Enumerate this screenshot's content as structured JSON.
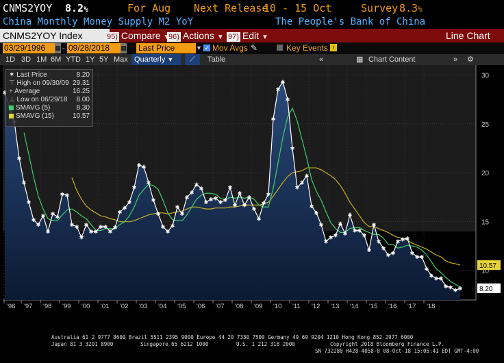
{
  "header": {
    "ticker": "CNMS2YOY",
    "value": "8.2",
    "value_suffix": "%",
    "period_label": "For Aug",
    "next_release_label": "Next Release",
    "next_release": "10 - 15 Oct",
    "survey_label": "Survey",
    "survey_value": "8.3",
    "survey_suffix": "%",
    "description": "China Monthly Money Supply M2 YoY",
    "source": "The People's Bank of China"
  },
  "toolbar": {
    "index_label": "CNMS2YOY Index",
    "compare_num": "95)",
    "compare_label": "Compare",
    "actions_num": "96)",
    "actions_label": "Actions",
    "edit_num": "97)",
    "edit_label": "Edit",
    "chart_type": "Line Chart"
  },
  "controls": {
    "start_date": "03/29/1996",
    "end_date": "09/28/2018",
    "field": "Last Price",
    "mov_avgs_label": "Mov Avgs",
    "key_events_label": "Key Events"
  },
  "ranges": {
    "items": [
      "1D",
      "3D",
      "1M",
      "6M",
      "YTD",
      "1Y",
      "5Y",
      "Max"
    ],
    "frequency": "Quarterly",
    "table_label": "Table",
    "chart_content_label": "Chart Content"
  },
  "legend": {
    "last_price_label": "Last Price",
    "last_price_value": "8.20",
    "high_label": "High on 09/30/09",
    "high_value": "29.31",
    "average_label": "Average",
    "average_value": "16.25",
    "low_label": "Low on 06/29/18",
    "low_value": "8.00",
    "sma5_label": "SMAVG (5)",
    "sma5_value": "8.30",
    "sma15_label": "SMAVG (15)",
    "sma15_value": "10.57"
  },
  "chart_data": {
    "type": "line",
    "x_start": "1996-03-29",
    "x_frequency": "quarterly",
    "ylim": [
      7,
      31
    ],
    "yticks": [
      10,
      15,
      20,
      25,
      30
    ],
    "xticks": [
      "'96",
      "'97",
      "'98",
      "'99",
      "'00",
      "'01",
      "'02",
      "'03",
      "'04",
      "'05",
      "'06",
      "'07",
      "'08",
      "'09",
      "'10",
      "'11",
      "'12",
      "'13",
      "'14",
      "'15",
      "'16",
      "'17",
      "'18"
    ],
    "grid": true,
    "legend_position": "top-left",
    "last_value_tags": [
      "10.57",
      "8.20"
    ],
    "series": [
      {
        "name": "Last Price",
        "color": "#ffffff",
        "values": [
          28.2,
          26.7,
          25.2,
          21.5,
          19.0,
          17.0,
          15.2,
          14.7,
          15.6,
          14.0,
          15.8,
          15.5,
          17.8,
          17.7,
          14.7,
          14.5,
          13.4,
          14.7,
          14.0,
          14.0,
          14.5,
          14.5,
          14.0,
          14.4,
          16.0,
          16.4,
          17.0,
          18.5,
          20.8,
          20.6,
          19.0,
          17.2,
          15.8,
          14.5,
          14.0,
          14.6,
          16.5,
          15.8,
          17.5,
          18.0,
          18.8,
          18.4,
          17.0,
          17.3,
          17.4,
          17.0,
          17.2,
          18.5,
          16.7,
          17.9,
          16.7,
          17.5,
          16.3,
          15.3,
          16.9,
          17.8,
          25.5,
          28.5,
          29.3,
          27.5,
          22.5,
          18.5,
          19.0,
          19.7,
          16.6,
          15.9,
          14.7,
          13.0,
          13.4,
          13.6,
          14.8,
          13.8,
          15.7,
          14.1,
          14.1,
          13.6,
          12.1,
          14.7,
          13.0,
          12.3,
          11.6,
          11.8,
          13.0,
          13.2,
          13.3,
          11.8,
          11.4,
          11.4,
          10.2,
          9.5,
          9.2,
          9.2,
          8.4,
          8.3,
          8.0,
          8.2
        ]
      },
      {
        "name": "SMAVG (5)",
        "color": "#3ecf6a",
        "values": [
          null,
          null,
          null,
          null,
          24.1,
          21.9,
          19.6,
          17.6,
          16.3,
          15.3,
          15.1,
          15.1,
          15.7,
          16.2,
          16.3,
          16.0,
          15.6,
          15.3,
          14.7,
          14.1,
          14.1,
          14.3,
          14.3,
          14.3,
          14.7,
          15.0,
          15.6,
          16.5,
          17.7,
          18.3,
          18.8,
          18.7,
          18.3,
          17.2,
          15.9,
          15.2,
          15.1,
          15.1,
          15.7,
          16.5,
          17.3,
          17.7,
          17.9,
          17.9,
          17.8,
          17.4,
          17.2,
          17.5,
          17.4,
          17.5,
          17.4,
          17.5,
          17.3,
          16.7,
          16.5,
          16.5,
          18.4,
          21.0,
          23.6,
          25.7,
          26.6,
          25.3,
          23.4,
          21.5,
          19.3,
          18.1,
          17.2,
          16.0,
          14.9,
          14.3,
          13.9,
          13.9,
          14.3,
          14.4,
          14.4,
          14.1,
          13.9,
          13.7,
          13.7,
          13.3,
          12.7,
          12.7,
          12.3,
          12.4,
          12.6,
          12.5,
          12.4,
          12.1,
          11.6,
          10.9,
          10.2,
          9.8,
          9.3,
          8.9,
          8.6,
          8.3
        ]
      },
      {
        "name": "SMAVG (15)",
        "color": "#c9b020",
        "values": [
          null,
          null,
          null,
          null,
          null,
          null,
          null,
          null,
          null,
          null,
          null,
          null,
          null,
          null,
          19.5,
          18.2,
          17.3,
          16.6,
          16.2,
          15.9,
          15.6,
          15.5,
          15.3,
          15.2,
          15.0,
          15.0,
          15.0,
          15.1,
          15.3,
          15.5,
          15.7,
          15.8,
          15.9,
          15.9,
          15.8,
          15.9,
          16.0,
          16.1,
          16.3,
          16.5,
          16.5,
          16.4,
          16.3,
          16.3,
          16.4,
          16.4,
          16.4,
          16.5,
          16.5,
          16.6,
          16.7,
          16.7,
          16.7,
          16.7,
          16.8,
          17.0,
          17.6,
          18.3,
          19.0,
          19.6,
          20.0,
          20.1,
          20.2,
          20.5,
          20.5,
          20.5,
          20.3,
          20.0,
          19.7,
          19.3,
          18.7,
          17.9,
          17.0,
          16.3,
          15.6,
          14.9,
          14.5,
          14.5,
          14.3,
          14.1,
          13.9,
          13.6,
          13.4,
          13.3,
          13.1,
          12.8,
          12.6,
          12.4,
          12.2,
          11.9,
          11.6,
          11.4,
          11.0,
          10.8,
          10.7,
          10.57
        ]
      }
    ]
  },
  "footer": {
    "line1": "Australia 61 2 9777 8600 Brazil 5511 2395 9000 Europe 44 20 7330 7500 Germany 49 69 9204 1210 Hong Kong 852 2977 6000",
    "line2a": "Japan 81 3 3201 8900",
    "line2b": "Singapore 65 6212 1000",
    "line2c": "U.S. 1 212 318 2000",
    "line2d": "Copyright 2018 Bloomberg Finance L.P.",
    "line3": "SN 732280 H428-4058-0 08-Oct-18 15:05:41 EDT  GMT-4:00"
  }
}
